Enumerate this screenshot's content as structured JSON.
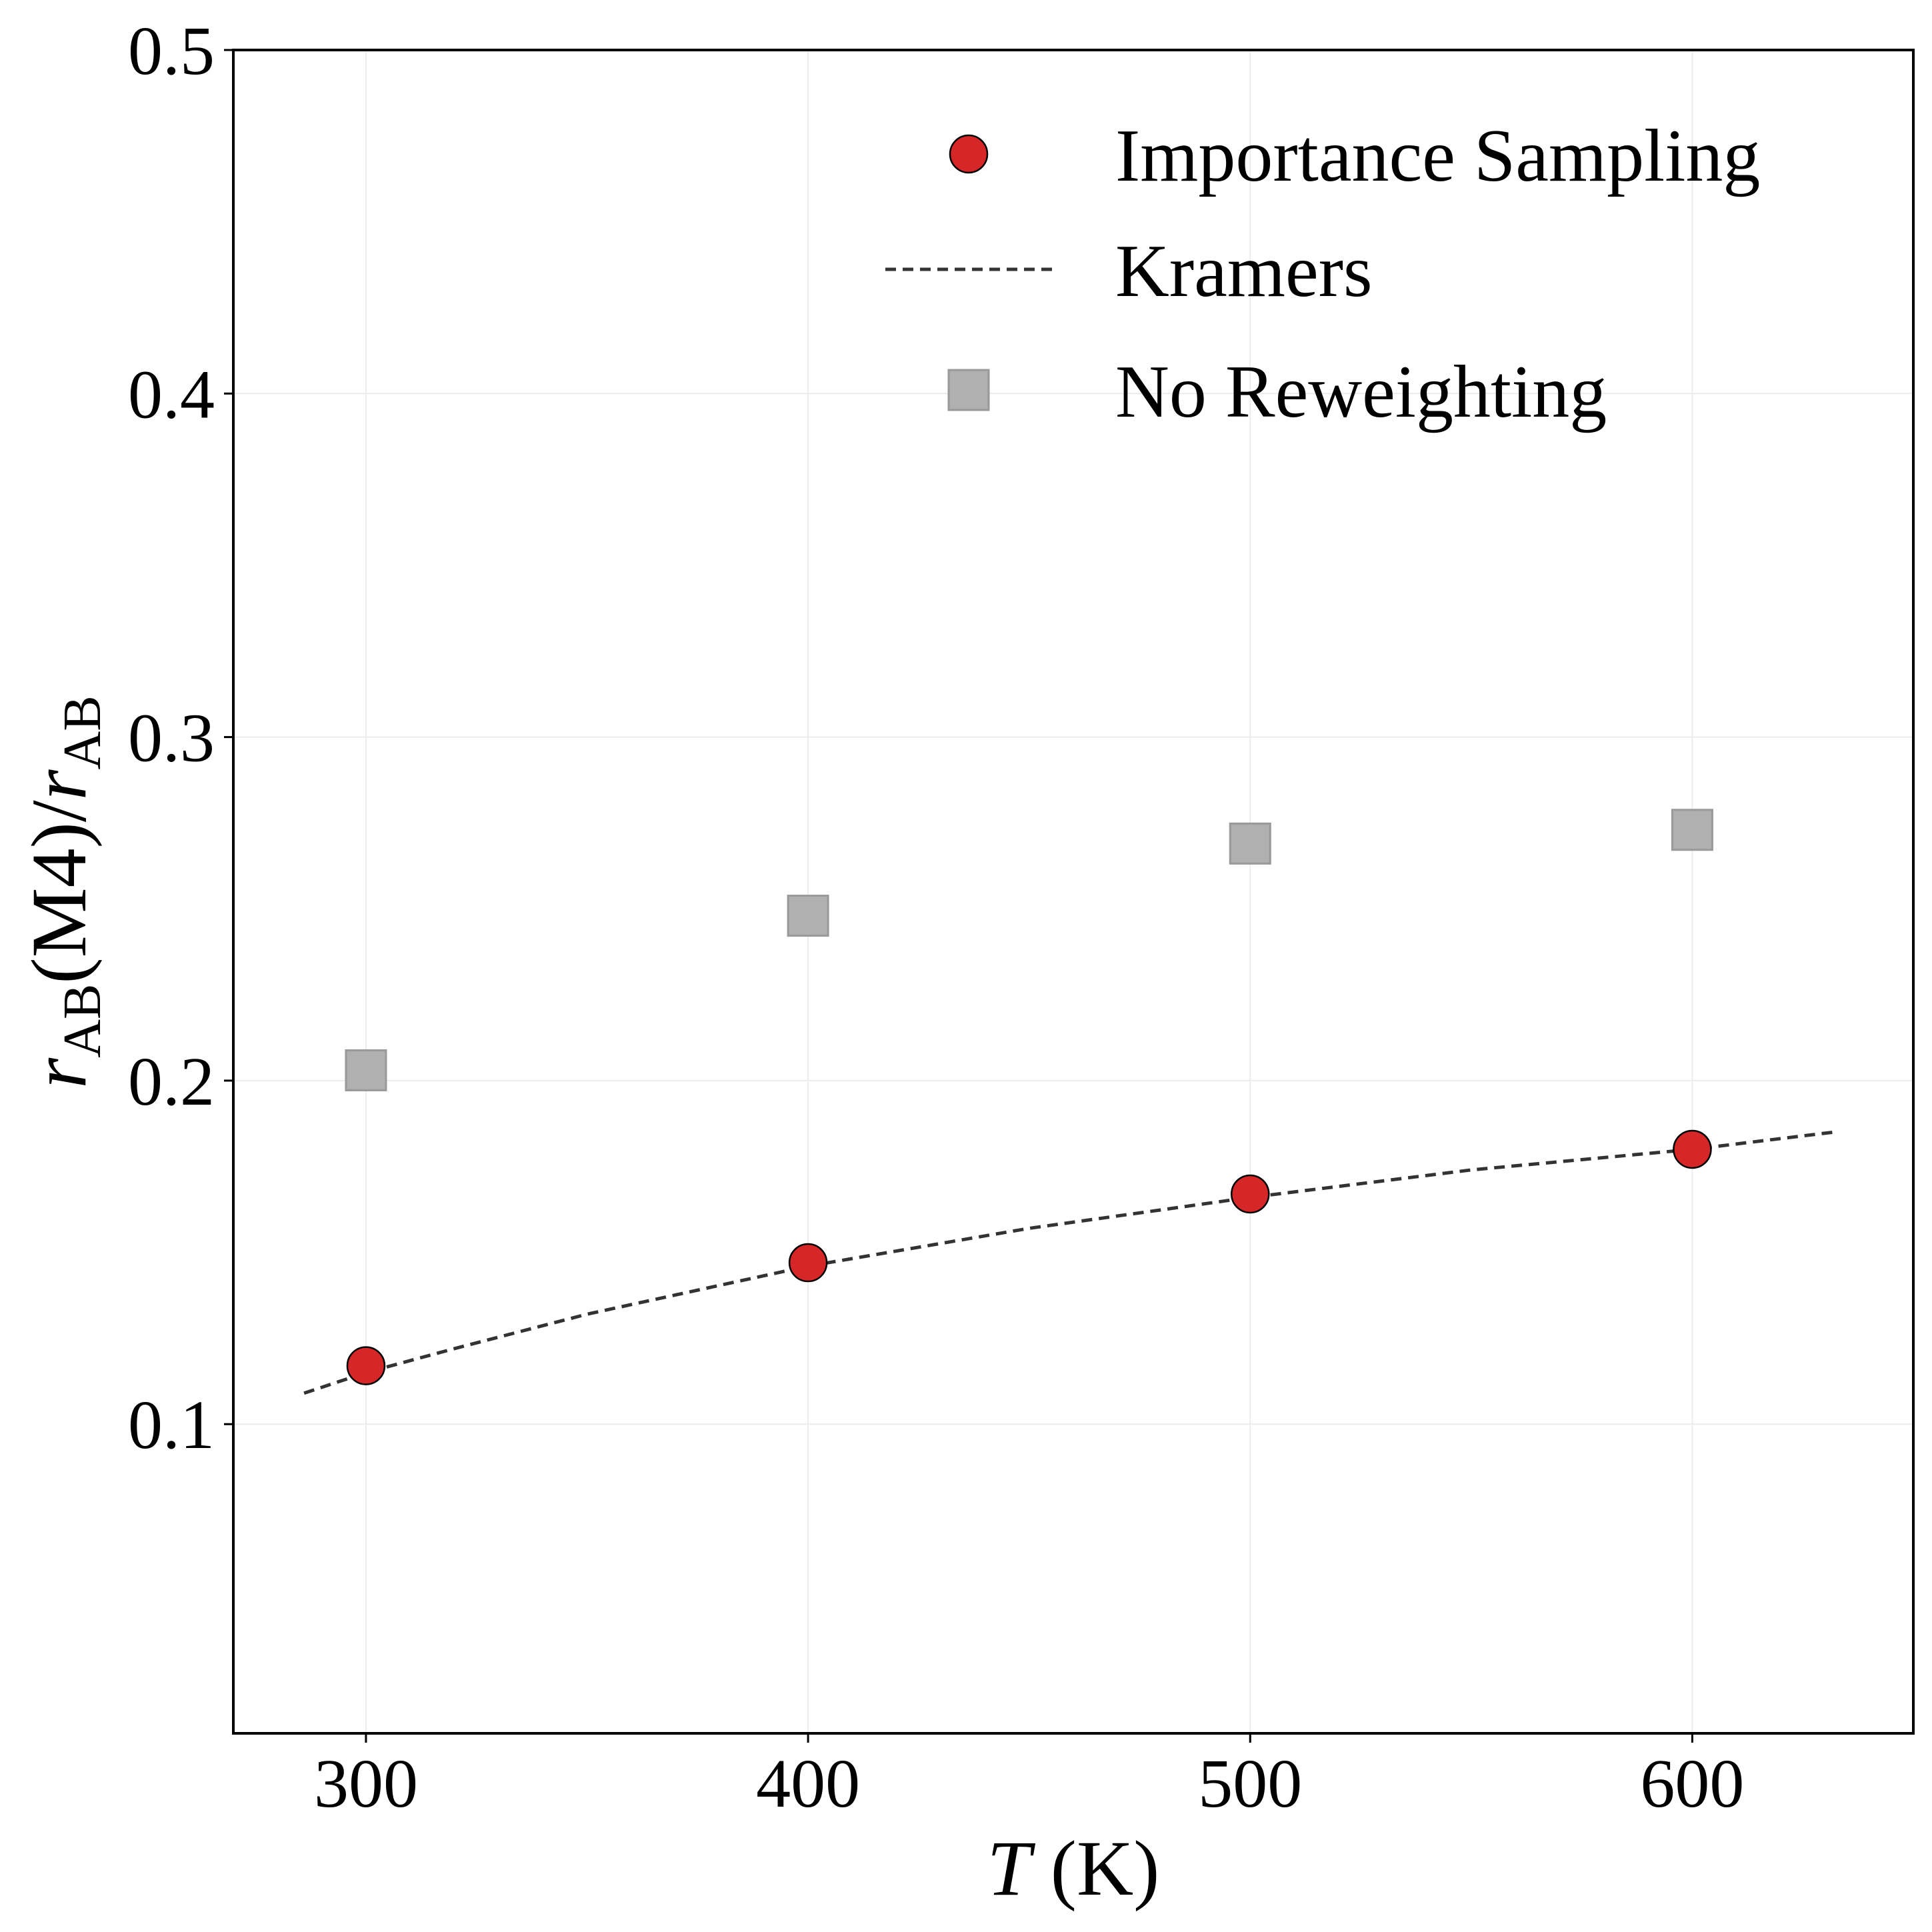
{
  "chart_data": {
    "type": "scatter",
    "xlabel": {
      "italic": "T",
      "rest": " (K)"
    },
    "ylabel": {
      "r1": "r",
      "sub1": "AB",
      "mid": "(M4)/",
      "r2": "r",
      "sub2": "AB"
    },
    "xlim": [
      270,
      650
    ],
    "ylim": [
      0.01,
      0.5
    ],
    "xticks": [
      300,
      400,
      500,
      600
    ],
    "xtick_labels": [
      "300",
      "400",
      "500",
      "600"
    ],
    "yticks": [
      0.1,
      0.2,
      0.3,
      0.4,
      0.5
    ],
    "ytick_labels": [
      "0.1",
      "0.2",
      "0.3",
      "0.4",
      "0.5"
    ],
    "grid": true,
    "legend_position": "top-right",
    "series": [
      {
        "name": "Importance Sampling",
        "kind": "markers-circle",
        "color": "#d62728",
        "edge": "#000000",
        "x": [
          300,
          400,
          500,
          600
        ],
        "y": [
          0.117,
          0.147,
          0.167,
          0.18
        ]
      },
      {
        "name": "Kramers",
        "kind": "dashed-line",
        "color": "#333333",
        "x": [
          286,
          300,
          320,
          350,
          400,
          450,
          500,
          550,
          600,
          632
        ],
        "y": [
          0.109,
          0.115,
          0.122,
          0.132,
          0.146,
          0.157,
          0.166,
          0.174,
          0.18,
          0.185
        ]
      },
      {
        "name": "No Reweighting",
        "kind": "markers-square",
        "color": "#b0b0b0",
        "edge": "#999999",
        "x": [
          300,
          400,
          500,
          600
        ],
        "y": [
          0.203,
          0.248,
          0.269,
          0.273
        ]
      }
    ]
  }
}
